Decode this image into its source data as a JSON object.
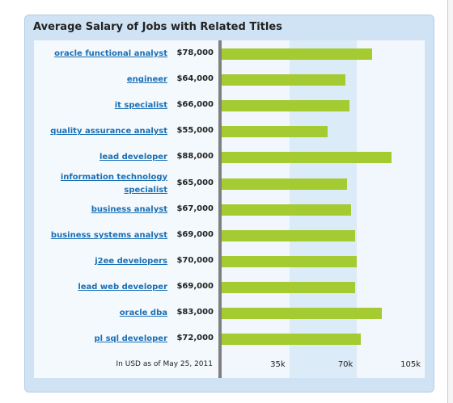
{
  "chart_data": {
    "type": "bar",
    "orientation": "horizontal",
    "title": "Average Salary of Jobs with Related Titles",
    "categories": [
      "oracle functional analyst",
      "engineer",
      "it specialist",
      "quality assurance analyst",
      "lead developer",
      "information technology specialist",
      "business analyst",
      "business systems analyst",
      "j2ee developers",
      "lead web developer",
      "oracle dba",
      "pl sql developer"
    ],
    "values": [
      78000,
      64000,
      66000,
      55000,
      88000,
      65000,
      67000,
      69000,
      70000,
      69000,
      83000,
      72000
    ],
    "value_labels": [
      "$78,000",
      "$64,000",
      "$66,000",
      "$55,000",
      "$88,000",
      "$65,000",
      "$67,000",
      "$69,000",
      "$70,000",
      "$69,000",
      "$83,000",
      "$72,000"
    ],
    "color": "#a4cb32",
    "xlim": [
      0,
      105000
    ],
    "xticks": [
      {
        "value": 35000,
        "label": "35k"
      },
      {
        "value": 70000,
        "label": "70k"
      },
      {
        "value": 105000,
        "label": "105k"
      }
    ],
    "note": "In USD as of May 25, 2011"
  }
}
